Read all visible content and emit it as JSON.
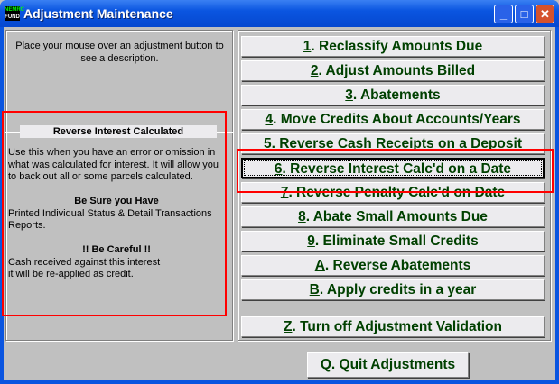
{
  "window": {
    "title": "Adjustment Maintenance",
    "logo_text": "FUND"
  },
  "hint": "Place your mouse over an adjustment button to see a description.",
  "description": {
    "title": "Reverse Interest Calculated",
    "p1": "Use this when you have an error or omission in what was calculated for interest.  It will allow you to back out all or some parcels calculated.",
    "h2": "Be Sure you Have",
    "p2": "Printed Individual Status & Detail Transactions Reports.",
    "h3": "!! Be Careful !!",
    "p3": "Cash received against this interest it will be re-applied as credit."
  },
  "buttons": [
    {
      "key": "1",
      "label": ".  Reclassify Amounts Due"
    },
    {
      "key": "2",
      "label": ". Adjust Amounts Billed"
    },
    {
      "key": "3",
      "label": ". Abatements"
    },
    {
      "key": "4",
      "label": ". Move Credits About Accounts/Years"
    },
    {
      "key": "5",
      "label": ". Reverse Cash Receipts on a Deposit"
    },
    {
      "key": "6",
      "label": ". Reverse Interest Calc'd on a Date"
    },
    {
      "key": "7",
      "label": ". Reverse Penalty Calc'd on Date"
    },
    {
      "key": "8",
      "label": ". Abate Small Amounts Due"
    },
    {
      "key": "9",
      "label": ". Eliminate Small Credits"
    },
    {
      "key": "A",
      "label": ". Reverse Abatements"
    },
    {
      "key": "B",
      "label": ". Apply credits in a year"
    },
    {
      "key": "Z",
      "label": ". Turn off Adjustment Validation"
    }
  ],
  "quit": {
    "key": "Q",
    "label": ".  Quit Adjustments"
  },
  "colors": {
    "button_text": "#004000",
    "highlight": "#ff0000",
    "titlebar": "#0a55e0"
  }
}
